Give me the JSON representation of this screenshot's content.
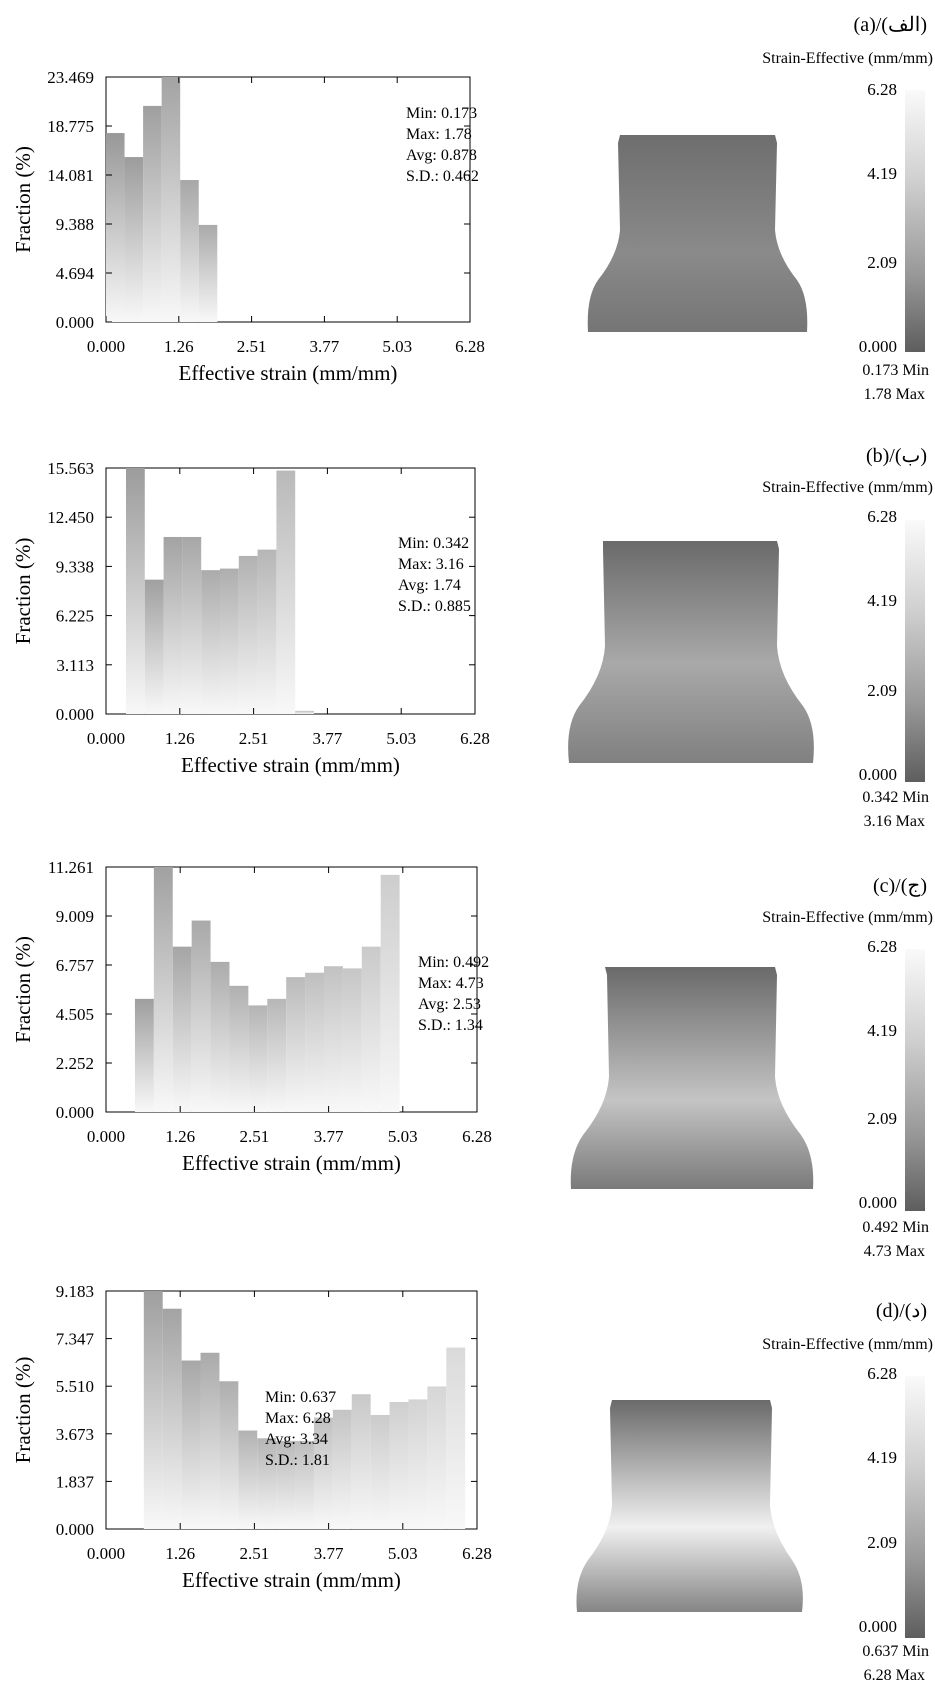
{
  "panels": [
    {
      "tag": "(a)/(الف)",
      "legend_title": "Strain-Effective (mm/mm)",
      "colorbar": {
        "ticks": [
          "6.28",
          "4.19",
          "2.09",
          "0.000"
        ],
        "min_label": "0.173  Min",
        "max_label": "1.78 Max"
      },
      "stats": [
        "Min: 0.173",
        "Max: 1.78",
        "Avg: 0.878",
        "S.D.: 0.462"
      ],
      "shade": {
        "top": "#6e6e6e",
        "mid": "#8a8a8a",
        "bottom": "#757575"
      },
      "chart_data": {
        "type": "bar",
        "xlabel": "Effective strain (mm/mm)",
        "ylabel": "Fraction  (%)",
        "xticks": [
          "0.000",
          "1.26",
          "2.51",
          "3.77",
          "5.03",
          "6.28"
        ],
        "yticks": [
          "0.000",
          "4.694",
          "9.388",
          "14.081",
          "18.775",
          "23.469"
        ],
        "xlim": [
          0,
          6.28
        ],
        "ylim": [
          0,
          23.469
        ],
        "bin_width": 0.32,
        "bin_left_edges": [
          0,
          0.32,
          0.64,
          0.96,
          1.28,
          1.6
        ],
        "values": [
          18.1,
          15.8,
          20.7,
          23.469,
          13.6,
          9.3
        ]
      }
    },
    {
      "tag": "(b)/(ب)",
      "legend_title": "Strain-Effective (mm/mm)",
      "colorbar": {
        "ticks": [
          "6.28",
          "4.19",
          "2.09",
          "0.000"
        ],
        "min_label": "0.342  Min",
        "max_label": "3.16  Max"
      },
      "stats": [
        "Min: 0.342",
        "Max: 3.16",
        "Avg: 1.74",
        "S.D.: 0.885"
      ],
      "shade": {
        "top": "#6a6a6a",
        "mid": "#a9a9a9",
        "bottom": "#808080"
      },
      "chart_data": {
        "type": "bar",
        "xlabel": "Effective strain (mm/mm)",
        "ylabel": "Fraction  (%)",
        "xticks": [
          "0.000",
          "1.26",
          "2.51",
          "3.77",
          "5.03",
          "6.28"
        ],
        "yticks": [
          "0.000",
          "3.113",
          "6.225",
          "9.338",
          "12.450",
          "15.563"
        ],
        "xlim": [
          0,
          6.28
        ],
        "ylim": [
          0,
          15.563
        ],
        "bin_width": 0.32,
        "bin_left_edges": [
          0.34,
          0.66,
          0.98,
          1.3,
          1.62,
          1.94,
          2.26,
          2.58,
          2.9,
          3.22
        ],
        "values": [
          15.563,
          8.5,
          11.2,
          11.2,
          9.1,
          9.2,
          10.0,
          10.4,
          15.4,
          0.2
        ]
      }
    },
    {
      "tag": "(c)/(ج)",
      "legend_title": "Strain-Effective (mm/mm)",
      "colorbar": {
        "ticks": [
          "6.28",
          "4.19",
          "2.09",
          "0.000"
        ],
        "min_label": "0.492  Min",
        "max_label": "4.73  Max"
      },
      "stats": [
        "Min: 0.492",
        "Max: 4.73",
        "Avg: 2.53",
        "S.D.: 1.34"
      ],
      "shade": {
        "top": "#6a6a6a",
        "mid": "#c4c4c4",
        "bottom": "#7a7a7a"
      },
      "chart_data": {
        "type": "bar",
        "xlabel": "Effective strain (mm/mm)",
        "ylabel": "Fraction  (%)",
        "xticks": [
          "0.000",
          "1.26",
          "2.51",
          "3.77",
          "5.03",
          "6.28"
        ],
        "yticks": [
          "0.000",
          "2.252",
          "4.505",
          "6.757",
          "9.009",
          "11.261"
        ],
        "xlim": [
          0,
          6.28
        ],
        "ylim": [
          0,
          11.261
        ],
        "bin_width": 0.32,
        "bin_left_edges": [
          0.49,
          0.81,
          1.13,
          1.45,
          1.77,
          2.09,
          2.41,
          2.73,
          3.05,
          3.37,
          3.69,
          4.01,
          4.33,
          4.65
        ],
        "values": [
          5.2,
          11.261,
          7.6,
          8.8,
          6.9,
          5.8,
          4.9,
          5.2,
          6.2,
          6.4,
          6.7,
          6.6,
          7.6,
          10.9
        ]
      }
    },
    {
      "tag": "(d)/(د)",
      "legend_title": "Strain-Effective (mm/mm)",
      "colorbar": {
        "ticks": [
          "6.28",
          "4.19",
          "2.09",
          "0.000"
        ],
        "min_label": "0.637  Min",
        "max_label": "6.28 Max"
      },
      "stats": [
        "Min: 0.637",
        "Max: 6.28",
        "Avg: 3.34",
        "S.D.: 1.81"
      ],
      "shade": {
        "top": "#6a6a6a",
        "mid": "#f0f0f0",
        "bottom": "#858585"
      },
      "chart_data": {
        "type": "bar",
        "xlabel": "Effective strain (mm/mm)",
        "ylabel": "Fraction  (%)",
        "xticks": [
          "0.000",
          "1.26",
          "2.51",
          "3.77",
          "5.03",
          "6.28"
        ],
        "yticks": [
          "0.000",
          "1.837",
          "3.673",
          "5.510",
          "7.347",
          "9.183"
        ],
        "xlim": [
          0,
          6.28
        ],
        "ylim": [
          0,
          9.183
        ],
        "bin_width": 0.32,
        "bin_left_edges": [
          0.64,
          0.96,
          1.28,
          1.6,
          1.92,
          2.24,
          2.56,
          2.88,
          3.2,
          3.52,
          3.84,
          4.16,
          4.48,
          4.8,
          5.12,
          5.44,
          5.76
        ],
        "values": [
          9.183,
          8.5,
          6.5,
          6.8,
          5.7,
          3.8,
          3.5,
          3.4,
          3.4,
          4.3,
          4.6,
          5.2,
          4.4,
          4.9,
          5.0,
          5.5,
          7.0
        ]
      }
    }
  ]
}
